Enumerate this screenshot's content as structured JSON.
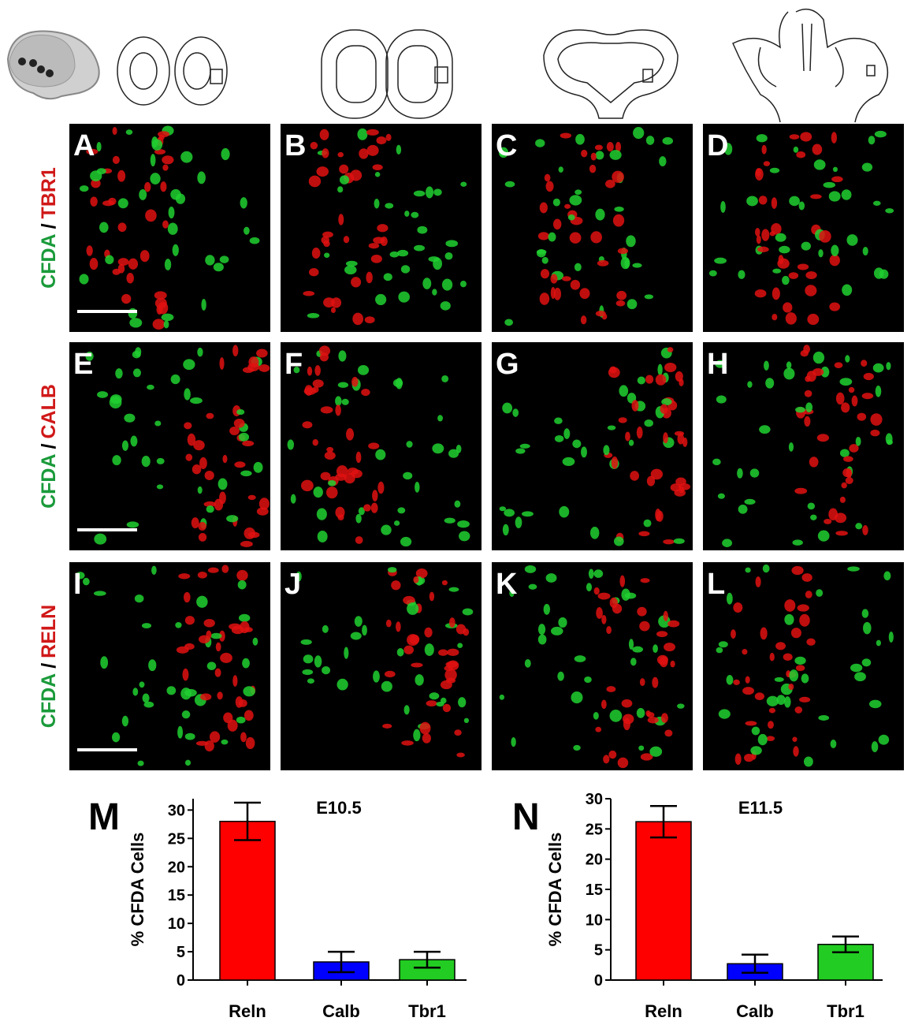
{
  "panels": {
    "labels": [
      "A",
      "B",
      "C",
      "D",
      "E",
      "F",
      "G",
      "H",
      "I",
      "J",
      "K",
      "L"
    ]
  },
  "row_labels": [
    {
      "stain1": "CFDA",
      "sep": "/",
      "stain2": "TBR1"
    },
    {
      "stain1": "CFDA",
      "sep": "/",
      "stain2": "CALB"
    },
    {
      "stain1": "CFDA",
      "sep": "/",
      "stain2": "RELN"
    }
  ],
  "chart_data": [
    {
      "type": "bar",
      "label": "M",
      "title": "E10.5",
      "y_label": "% CFDA Cells",
      "categories": [
        "Reln",
        "Calb",
        "Tbr1"
      ],
      "values": [
        28.0,
        3.2,
        3.6
      ],
      "errors": [
        3.3,
        1.8,
        1.4
      ],
      "colors": [
        "#ff0000",
        "#0000ff",
        "#22cc22"
      ],
      "ylim": [
        0,
        32
      ],
      "yticks": [
        0,
        5,
        10,
        15,
        20,
        25,
        30
      ]
    },
    {
      "type": "bar",
      "label": "N",
      "title": "E11.5",
      "y_label": "% CFDA Cells",
      "categories": [
        "Reln",
        "Calb",
        "Tbr1"
      ],
      "values": [
        26.2,
        2.7,
        5.9
      ],
      "errors": [
        2.6,
        1.5,
        1.3
      ],
      "colors": [
        "#ff0000",
        "#0000ff",
        "#22cc22"
      ],
      "ylim": [
        0,
        30
      ],
      "yticks": [
        0,
        5,
        10,
        15,
        20,
        25,
        30
      ]
    }
  ]
}
